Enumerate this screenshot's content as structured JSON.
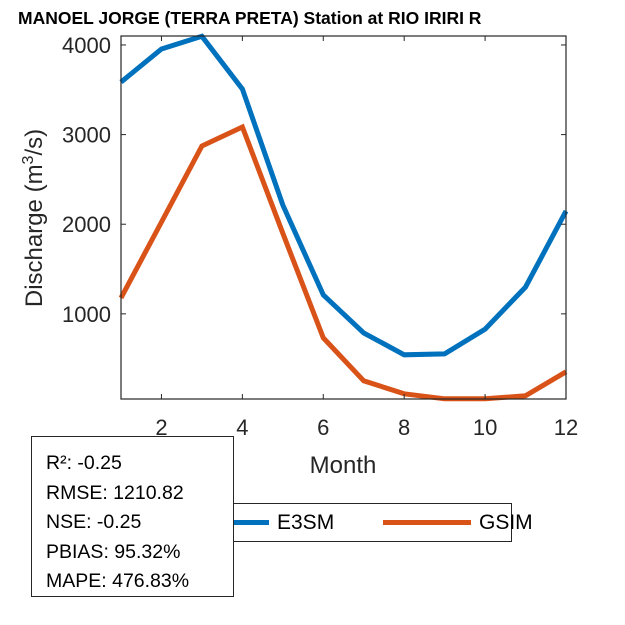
{
  "chart_data": {
    "type": "line",
    "title": "MANOEL JORGE  (TERRA PRETA)  Station at  RIO IRIRI  R",
    "xlabel": "Month",
    "ylabel": "Discharge (m³/s)",
    "ylabel_parts": {
      "prefix": "Discharge (m",
      "superscript": "3",
      "suffix": "/s)"
    },
    "xlim": [
      1,
      12
    ],
    "ylim": [
      50,
      4100
    ],
    "x": [
      1,
      2,
      3,
      4,
      5,
      6,
      7,
      8,
      9,
      10,
      11,
      12
    ],
    "xticks": [
      2,
      4,
      6,
      8,
      10,
      12
    ],
    "xtick_labels": [
      "2",
      "4",
      "6",
      "8",
      "10",
      "12"
    ],
    "yticks": [
      1000,
      2000,
      3000,
      4000
    ],
    "ytick_labels": [
      "1000",
      "2000",
      "3000",
      "4000"
    ],
    "grid": false,
    "series": [
      {
        "name": "E3SM",
        "color": "#0072BD",
        "values": [
          3586,
          3955,
          4097,
          3508,
          2214,
          1212,
          788,
          543,
          553,
          830,
          1299,
          2146
        ]
      },
      {
        "name": "GSIM",
        "color": "#D95319",
        "values": [
          1178,
          2025,
          2873,
          3085,
          1900,
          732,
          253,
          108,
          52,
          52,
          86,
          353
        ]
      }
    ],
    "legend": {
      "placement": "bottom-center",
      "entries": [
        "E3SM",
        "GSIM"
      ]
    },
    "annotations": {
      "stats": [
        "R²: -0.25",
        "RMSE: 1210.82",
        "NSE: -0.25",
        "PBIAS: 95.32%",
        "MAPE: 476.83%"
      ]
    }
  }
}
